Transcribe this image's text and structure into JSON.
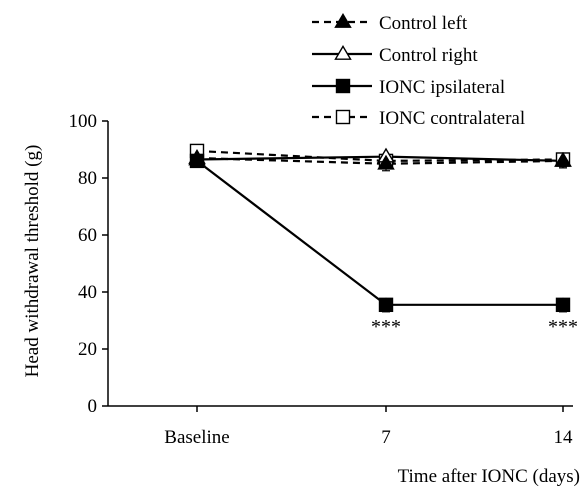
{
  "chart_data": {
    "type": "line",
    "title": "",
    "xlabel": "Time after IONC (days)",
    "ylabel": "Head withdrawal threshold (g)",
    "ylim": [
      0,
      100
    ],
    "yticks": [
      0,
      20,
      40,
      60,
      80,
      100
    ],
    "categories": [
      "Baseline",
      "7",
      "14"
    ],
    "legend_position": "top-right",
    "series": [
      {
        "name": "Control left",
        "line": "dashed",
        "marker": "triangle-filled",
        "values": [
          87,
          85,
          86
        ]
      },
      {
        "name": "Control right",
        "line": "solid",
        "marker": "triangle-open",
        "values": [
          86.5,
          87.5,
          86
        ]
      },
      {
        "name": "IONC ipsilateral",
        "line": "solid",
        "marker": "square-filled",
        "values": [
          86,
          35.5,
          35.5
        ]
      },
      {
        "name": "IONC contralateral",
        "line": "dashed",
        "marker": "square-open",
        "values": [
          89.5,
          86,
          86.5
        ]
      }
    ],
    "annotations": [
      {
        "category": "7",
        "text": "***"
      },
      {
        "category": "14",
        "text": "***"
      }
    ]
  }
}
